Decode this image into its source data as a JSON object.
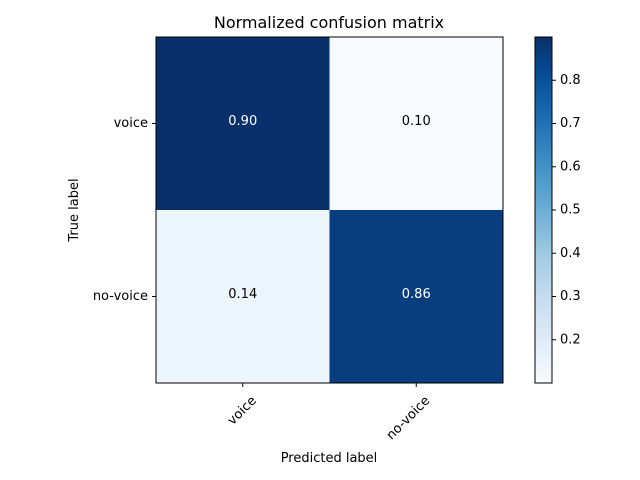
{
  "chart_data": {
    "type": "heatmap",
    "title": "Normalized confusion matrix",
    "xlabel": "Predicted label",
    "ylabel": "True label",
    "x_categories": [
      "voice",
      "no-voice"
    ],
    "y_categories": [
      "voice",
      "no-voice"
    ],
    "values": [
      [
        0.9,
        0.1
      ],
      [
        0.14,
        0.86
      ]
    ],
    "cell_labels": [
      [
        "0.90",
        "0.10"
      ],
      [
        "0.14",
        "0.86"
      ]
    ],
    "colormap": "Blues",
    "color_range": [
      0.1,
      0.9
    ],
    "colorbar_ticks": [
      "0.2",
      "0.3",
      "0.4",
      "0.5",
      "0.6",
      "0.7",
      "0.8"
    ],
    "colorbar_tick_values": [
      0.2,
      0.3,
      0.4,
      0.5,
      0.6,
      0.7,
      0.8
    ],
    "x_tick_rotation_deg": 45,
    "grid": false
  }
}
